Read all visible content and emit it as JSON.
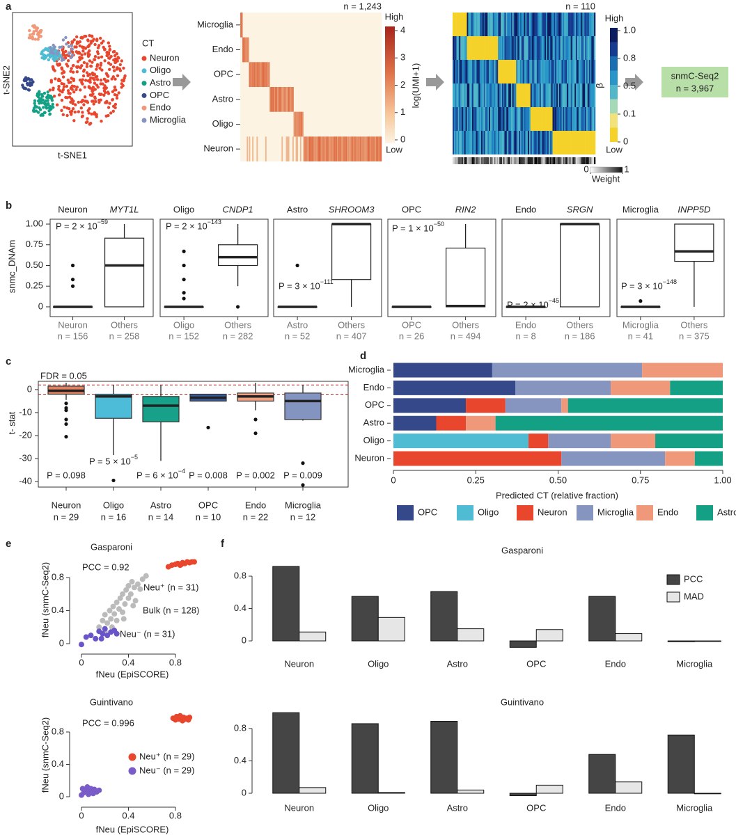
{
  "panel_labels": [
    "a",
    "b",
    "c",
    "d",
    "e",
    "f"
  ],
  "panel_a": {
    "tsne_xlabel": "t-SNE1",
    "tsne_ylabel": "t-SNE2",
    "legend_title": "CT",
    "cell_types": [
      {
        "name": "Neuron",
        "color": "#e8472e"
      },
      {
        "name": "Oligo",
        "color": "#4fbcd4"
      },
      {
        "name": "Astro",
        "color": "#14a085"
      },
      {
        "name": "OPC",
        "color": "#34488a"
      },
      {
        "name": "Endo",
        "color": "#f0997a"
      },
      {
        "name": "Microglia",
        "color": "#8595c0"
      }
    ],
    "heatmap_rows": [
      "Microglia",
      "Endo",
      "OPC",
      "Astro",
      "Oligo",
      "Neuron"
    ],
    "heatmap1_n": "n = 1,243",
    "colorbar1": {
      "high": "High",
      "low": "Low",
      "label": "log(UMI+1)",
      "ticks": [
        0,
        1,
        2,
        3,
        4
      ]
    },
    "heatmap2_n": "n = 110",
    "colorbar2": {
      "high": "High",
      "low": "Low",
      "label": "β",
      "ticks": [
        0,
        0.1,
        0.5,
        0.8,
        {
          "value": 1,
          "label": "1.0"
        }
      ]
    },
    "weight_bar": {
      "label": "Weight",
      "ticks": [
        0,
        1
      ]
    },
    "output": {
      "name": "snmC-Seq2",
      "n": "n = 3,967"
    }
  },
  "chart_data": [
    {
      "type": "boxgrid",
      "ylabel": "snmc_DNAm",
      "ylim": [
        -0.118,
        1.059
      ],
      "yticks": [
        0,
        0.25,
        {
          "value": 0.5,
          "label": "0.50"
        },
        0.75,
        {
          "value": 1,
          "label": "1.00"
        }
      ],
      "panels": [
        {
          "cell_type": "Neuron",
          "color": "#e8472e",
          "gene": "MYT1L",
          "p_label": {
            "text": "P = 2 × 10",
            "exponent": "−59"
          },
          "categories": [
            "Neuron",
            "Others"
          ],
          "n_labels": [
            "n = 156",
            "n = 258"
          ],
          "boxes": [
            {
              "q1": 0,
              "median": 0,
              "q3": 0,
              "whisker_low": 0,
              "whisker_high": 0,
              "outliers": [
                0.5,
                0.33,
                0.25
              ]
            },
            {
              "q1": 0,
              "median": 0.5,
              "q3": 0.83,
              "whisker_low": 0,
              "whisker_high": 1,
              "outliers": []
            }
          ]
        },
        {
          "cell_type": "Oligo",
          "color": "#4fbcd4",
          "gene": "CNDP1",
          "p_label": {
            "text": "P = 2 × 10",
            "exponent": "−143"
          },
          "categories": [
            "Oligo",
            "Others"
          ],
          "n_labels": [
            "n = 152",
            "n = 282"
          ],
          "boxes": [
            {
              "q1": 0,
              "median": 0,
              "q3": 0,
              "whisker_low": 0,
              "whisker_high": 0,
              "outliers": [
                0.67,
                0.5,
                0.33,
                0.17,
                0.1
              ]
            },
            {
              "q1": 0.5,
              "median": 0.6,
              "q3": 0.75,
              "whisker_low": 0.25,
              "whisker_high": 1,
              "outliers": [
                0
              ]
            }
          ]
        },
        {
          "cell_type": "Astro",
          "color": "#14a085",
          "gene": "SHROOM3",
          "p_label": {
            "text": "P = 3 × 10",
            "exponent": "−111"
          },
          "categories": [
            "Astro",
            "Others"
          ],
          "n_labels": [
            "n = 52",
            "n = 407"
          ],
          "boxes": [
            {
              "q1": 0,
              "median": 0,
              "q3": 0,
              "whisker_low": 0,
              "whisker_high": 0,
              "outliers": [
                0.5
              ]
            },
            {
              "q1": 0.33,
              "median": 1,
              "q3": 1,
              "whisker_low": 0,
              "whisker_high": 1,
              "outliers": []
            }
          ]
        },
        {
          "cell_type": "OPC",
          "color": "#34488a",
          "gene": "RIN2",
          "p_label": {
            "text": "P = 1 × 10",
            "exponent": "−50"
          },
          "categories": [
            "OPC",
            "Others"
          ],
          "n_labels": [
            "n = 26",
            "n = 494"
          ],
          "boxes": [
            {
              "q1": 0,
              "median": 0,
              "q3": 0,
              "whisker_low": 0,
              "whisker_high": 0,
              "outliers": []
            },
            {
              "q1": 0,
              "median": 0.01,
              "q3": 0.71,
              "whisker_low": 0,
              "whisker_high": 1,
              "outliers": []
            }
          ]
        },
        {
          "cell_type": "Endo",
          "color": "#f0997a",
          "gene": "SRGN",
          "p_label": {
            "text": "P = 2 × 10",
            "exponent": "−45"
          },
          "categories": [
            "Endo",
            "Others"
          ],
          "n_labels": [
            "n = 8",
            "n = 186"
          ],
          "boxes": [
            {
              "q1": 0,
              "median": 0,
              "q3": 0,
              "whisker_low": 0,
              "whisker_high": 0,
              "outliers": []
            },
            {
              "q1": 0,
              "median": 1,
              "q3": 1,
              "whisker_low": 0,
              "whisker_high": 1,
              "outliers": []
            }
          ]
        },
        {
          "cell_type": "Microglia",
          "color": "#8595c0",
          "gene": "INPP5D",
          "p_label": {
            "text": "P = 3 × 10",
            "exponent": "−148"
          },
          "categories": [
            "Microglia",
            "Others"
          ],
          "n_labels": [
            "n = 41",
            "n = 375"
          ],
          "boxes": [
            {
              "q1": 0,
              "median": 0,
              "q3": 0,
              "whisker_low": 0,
              "whisker_high": 0,
              "outliers": [
                0.07
              ]
            },
            {
              "q1": 0.55,
              "median": 0.67,
              "q3": 1,
              "whisker_low": 0,
              "whisker_high": 1,
              "outliers": []
            }
          ]
        }
      ]
    },
    {
      "type": "box",
      "ylabel": "t- stat",
      "ylim": [
        -42.4,
        3.6
      ],
      "yticks": [
        0,
        -10,
        -20,
        -30,
        -40
      ],
      "threshold_label": "FDR = 0.05",
      "thresholds": [
        2,
        -2
      ],
      "categories": [
        "Neuron",
        "Oligo",
        "Astro",
        "OPC",
        "Endo",
        "Microglia"
      ],
      "n_labels": [
        "n = 29",
        "n = 16",
        "n = 14",
        "n = 10",
        "n = 22",
        "n = 12"
      ],
      "colors": [
        "#e0805f",
        "#4dbcd8",
        "#17a08a",
        "#3b5a9a",
        "#f0a07e",
        "#8494c0"
      ],
      "p_labels": [
        {
          "text": "P = 0.098"
        },
        {
          "text": "P = 5 × 10",
          "exponent": "−5"
        },
        {
          "text": "P = 6 × 10",
          "exponent": "−4"
        },
        {
          "text": "P = 0.008"
        },
        {
          "text": "P = 0.002"
        },
        {
          "text": "P = 0.009"
        }
      ],
      "boxes": [
        {
          "q1": -2,
          "median": -0.5,
          "q3": 1.5,
          "whisker_low": -4.5,
          "whisker_high": 3,
          "outliers": [
            -6,
            -8,
            -9,
            -13,
            -15,
            -20.5
          ]
        },
        {
          "q1": -12.5,
          "median": -3,
          "q3": -2,
          "whisker_low": -28.5,
          "whisker_high": 2,
          "outliers": [
            -39.5
          ]
        },
        {
          "q1": -14,
          "median": -7,
          "q3": -3,
          "whisker_low": -31,
          "whisker_high": 2,
          "outliers": []
        },
        {
          "q1": -5,
          "median": -3.5,
          "q3": -2,
          "whisker_low": -5,
          "whisker_high": -2,
          "outliers": [
            -16.5
          ]
        },
        {
          "q1": -5,
          "median": -3,
          "q3": -1.5,
          "whisker_low": -9,
          "whisker_high": 3,
          "outliers": [
            -13,
            -19
          ]
        },
        {
          "q1": -13,
          "median": -5,
          "q3": -1.5,
          "whisker_low": -13.5,
          "whisker_high": 2,
          "outliers": [
            -32,
            -41.5
          ]
        }
      ]
    },
    {
      "type": "barh",
      "xlabel": "Predicted CT (relative fraction)",
      "categories": [
        "Microglia",
        "Endo",
        "OPC",
        "Astro",
        "Oligo",
        "Neuron"
      ],
      "xlim": [
        0,
        1
      ],
      "xticks": [
        0,
        0.25,
        {
          "value": 0.5,
          "label": "0.50"
        },
        0.75,
        {
          "value": 1,
          "label": "1.00"
        }
      ],
      "series": [
        {
          "name": "OPC",
          "color": "#34488a",
          "values": [
            0.3,
            0.37,
            0.22,
            0.13,
            0,
            0
          ]
        },
        {
          "name": "Oligo",
          "color": "#4fbcd4",
          "values": [
            0,
            0,
            0,
            0,
            0.41,
            0
          ]
        },
        {
          "name": "Neuron",
          "color": "#e8472e",
          "values": [
            0,
            0,
            0.12,
            0.09,
            0.06,
            0.51
          ]
        },
        {
          "name": "Microglia",
          "color": "#8595c0",
          "values": [
            0.455,
            0.29,
            0.17,
            0,
            0.19,
            0.315
          ]
        },
        {
          "name": "Endo",
          "color": "#f0997a",
          "values": [
            0.245,
            0.18,
            0.02,
            0.09,
            0.135,
            0.09
          ]
        },
        {
          "name": "Astro",
          "color": "#14a085",
          "values": [
            0,
            0.16,
            0.47,
            0.69,
            0.205,
            0.085
          ]
        }
      ]
    },
    {
      "type": "scatter",
      "title": "Gasparoni",
      "xlabel": "fNeu (EpiSCORE)",
      "ylabel": "fNeu (snmC-Seq2)",
      "xlim": [
        -0.071,
        1.055
      ],
      "ylim": [
        -0.126,
        1.095
      ],
      "xticks": [
        0,
        0.4,
        0.8
      ],
      "yticks": [
        0,
        0.4,
        0.8
      ],
      "annotation": "PCC = 0.92",
      "legend": false,
      "series": [
        {
          "name": "Neu⁺ (n = 31)",
          "color": "#e8472e",
          "x": [
            0.74,
            0.77,
            0.8,
            0.82,
            0.84,
            0.86,
            0.88,
            0.9,
            0.92,
            0.94,
            0.96,
            0.85
          ],
          "values": [
            0.93,
            0.95,
            0.96,
            0.97,
            0.95,
            0.98,
            0.97,
            0.99,
            0.98,
            0.99,
            0.99,
            0.96
          ]
        },
        {
          "name": "Neu⁻ (n = 31)",
          "color": "#6a55c8",
          "x": [
            0.0,
            0.04,
            0.08,
            0.12,
            0.15,
            0.18,
            0.2,
            0.22,
            0.25,
            0.28,
            0.3,
            0.17
          ],
          "values": [
            -0.01,
            0.08,
            0.1,
            0.06,
            0.15,
            0.12,
            0.18,
            0.1,
            0.14,
            0.16,
            0.12,
            0.06
          ]
        },
        {
          "name": "Bulk (n = 128)",
          "color": "#bbbbbb",
          "x": [
            0.15,
            0.18,
            0.2,
            0.22,
            0.24,
            0.25,
            0.27,
            0.28,
            0.3,
            0.3,
            0.32,
            0.33,
            0.35,
            0.35,
            0.37,
            0.38,
            0.4,
            0.4,
            0.42,
            0.43,
            0.45,
            0.46,
            0.48,
            0.5,
            0.52,
            0.26,
            0.2,
            0.36,
            0.55,
            0.44
          ],
          "values": [
            0.2,
            0.28,
            0.35,
            0.25,
            0.4,
            0.3,
            0.45,
            0.36,
            0.5,
            0.28,
            0.42,
            0.55,
            0.6,
            0.38,
            0.48,
            0.65,
            0.55,
            0.7,
            0.6,
            0.75,
            0.68,
            0.52,
            0.72,
            0.66,
            0.78,
            0.2,
            0.15,
            0.3,
            0.82,
            0.46
          ]
        }
      ]
    },
    {
      "type": "scatter",
      "title": "Guintivano",
      "xlabel": "fNeu (EpiSCORE)",
      "ylabel": "fNeu (snmC-Seq2)",
      "xlim": [
        -0.071,
        1.055
      ],
      "ylim": [
        -0.129,
        1.118
      ],
      "xticks": [
        0,
        0.4,
        0.8
      ],
      "yticks": [
        0,
        0.4,
        0.8
      ],
      "annotation": "PCC = 0.996",
      "legend": true,
      "series": [
        {
          "name": "Neu⁺ (n = 29)",
          "color": "#e8472e",
          "x": [
            0.78,
            0.8,
            0.81,
            0.83,
            0.84,
            0.85,
            0.86,
            0.87,
            0.88,
            0.9,
            0.91,
            0.92
          ],
          "values": [
            0.97,
            0.95,
            0.99,
            0.96,
            1.0,
            0.97,
            0.94,
            0.98,
            0.96,
            0.97,
            0.95,
            0.98
          ]
        },
        {
          "name": "Neu⁻ (n = 29)",
          "color": "#7a5cc8",
          "x": [
            0.0,
            0.01,
            0.02,
            0.03,
            0.05,
            0.06,
            0.07,
            0.08,
            0.1,
            0.11,
            0.13,
            0.15
          ],
          "values": [
            0.02,
            0.1,
            0.05,
            0.08,
            0.12,
            0.03,
            0.07,
            0.1,
            0.04,
            0.09,
            0.06,
            0.08
          ]
        }
      ]
    },
    {
      "type": "bar",
      "title": "Gasparoni",
      "legend": true,
      "categories": [
        "Neuron",
        "Oligo",
        "Astro",
        "OPC",
        "Endo",
        "Microglia"
      ],
      "ylim": [
        -0.163,
        0.998
      ],
      "yticks": [
        0,
        0.4,
        0.8
      ],
      "series": [
        {
          "name": "PCC",
          "color": "#454545",
          "values": [
            0.92,
            0.55,
            0.61,
            -0.08,
            0.55,
            -0.01
          ]
        },
        {
          "name": "MAD",
          "color": "#e6e6e6",
          "values": [
            0.11,
            0.29,
            0.15,
            0.14,
            0.09,
            0.0
          ]
        }
      ]
    },
    {
      "type": "bar",
      "title": "Guintivano",
      "legend": false,
      "categories": [
        "Neuron",
        "Oligo",
        "Astro",
        "OPC",
        "Endo",
        "Microglia"
      ],
      "ylim": [
        -0.086,
        1.032
      ],
      "yticks": [
        0,
        0.4,
        0.8
      ],
      "series": [
        {
          "color": "#454545",
          "values": [
            0.996,
            0.86,
            0.89,
            -0.03,
            0.48,
            0.72
          ]
        },
        {
          "color": "#e6e6e6",
          "values": [
            0.07,
            0.01,
            0.04,
            0.1,
            0.14,
            0.0
          ]
        }
      ]
    }
  ]
}
